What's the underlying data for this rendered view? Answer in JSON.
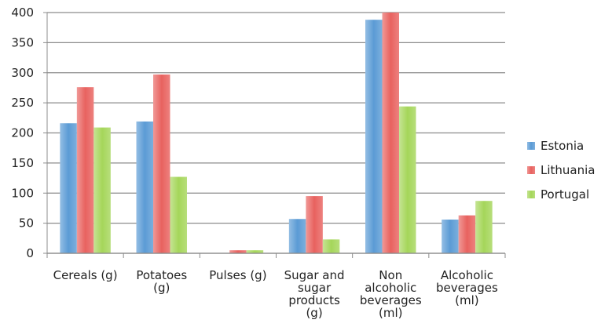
{
  "chart_data": {
    "type": "bar",
    "title": "",
    "xlabel": "",
    "ylabel": "",
    "ylim": [
      0,
      400
    ],
    "yticks": [
      0,
      50,
      100,
      150,
      200,
      250,
      300,
      350,
      400
    ],
    "grid": "horizontal",
    "legend_position": "right",
    "categories": [
      [
        "Cereals (g)"
      ],
      [
        "Potatoes",
        "(g)"
      ],
      [
        "Pulses (g)"
      ],
      [
        "Sugar and",
        "sugar",
        "products",
        "(g)"
      ],
      [
        "Non",
        "alcoholic",
        "beverages",
        "(ml)"
      ],
      [
        "Alcoholic",
        "beverages",
        "(ml)"
      ]
    ],
    "series": [
      {
        "name": "Estonia",
        "color": "#5b9bd5",
        "values": [
          216,
          219,
          0,
          57,
          388,
          56
        ]
      },
      {
        "name": "Lithuania",
        "color": "#e8625f",
        "values": [
          276,
          297,
          5,
          95,
          400,
          63
        ]
      },
      {
        "name": "Portugal",
        "color": "#a5d65a",
        "values": [
          209,
          127,
          5,
          23,
          244,
          87
        ]
      }
    ]
  }
}
